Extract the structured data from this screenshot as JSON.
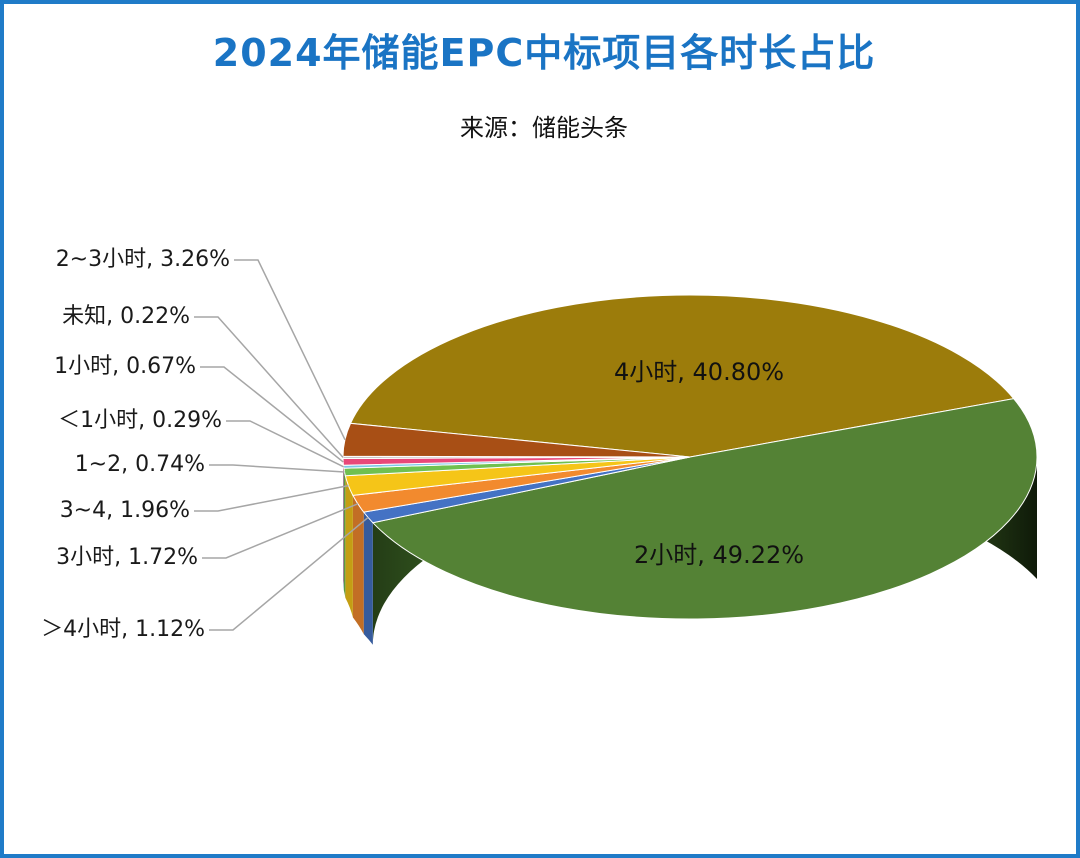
{
  "chart_data": {
    "type": "pie",
    "title": "2024年储能EPC中标项目各时长占比",
    "subtitle": "来源：储能头条",
    "slices": [
      {
        "label": "4小时",
        "value_text": "40.80%",
        "value": 40.8,
        "color": "#9c7c0b"
      },
      {
        "label": "2小时",
        "value_text": "49.22%",
        "value": 49.22,
        "color": "#548235"
      },
      {
        "label": "＞4小时",
        "value_text": "1.12%",
        "value": 1.12,
        "color": "#4472c4"
      },
      {
        "label": "3小时",
        "value_text": "1.72%",
        "value": 1.72,
        "color": "#f28a2e"
      },
      {
        "label": "3~4",
        "value_text": "1.96%",
        "value": 1.96,
        "color": "#f5c518"
      },
      {
        "label": "1~2",
        "value_text": "0.74%",
        "value": 0.74,
        "color": "#70c050"
      },
      {
        "label": "＜1小时",
        "value_text": "0.29%",
        "value": 0.29,
        "color": "#7cc7e8"
      },
      {
        "label": "1小时",
        "value_text": "0.67%",
        "value": 0.67,
        "color": "#e8487a"
      },
      {
        "label": "未知",
        "value_text": "0.22%",
        "value": 0.22,
        "color": "#c9c9c9"
      },
      {
        "label": "2~3小时",
        "value_text": "3.26%",
        "value": 3.26,
        "color": "#a84f15"
      }
    ],
    "legend": "none",
    "style": "3d"
  }
}
